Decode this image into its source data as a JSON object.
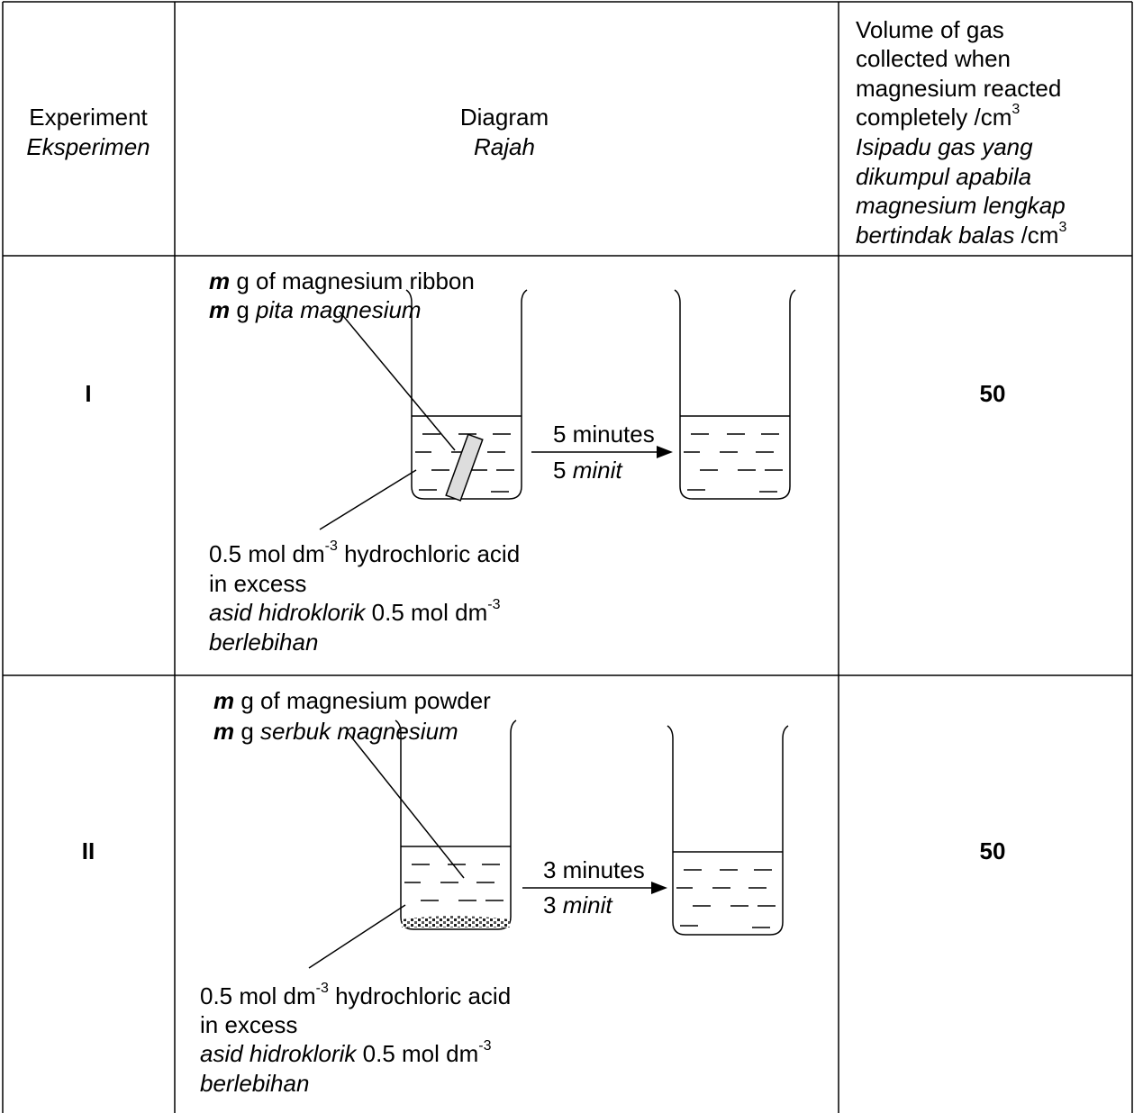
{
  "header": {
    "experiment": {
      "en": "Experiment",
      "ms": "Eksperimen"
    },
    "diagram": {
      "en": "Diagram",
      "ms": "Rajah"
    },
    "volume": {
      "en": [
        "Volume of gas",
        "collected when",
        "magnesium reacted",
        "completely /cm"
      ],
      "en_sup": "3",
      "ms": [
        "Isipadu gas yang",
        "dikumpul apabila",
        "magnesium lengkap",
        "bertindak balas"
      ],
      "ms_unit": " /cm",
      "ms_sup": "3"
    }
  },
  "rows": [
    {
      "experiment": "I",
      "volume": 50,
      "mass_en": [
        "m",
        " g of magnesium ribbon"
      ],
      "mass_ms": [
        "m",
        " g ",
        "pita magnesium"
      ],
      "time_en": "5 minutes",
      "time_ms": [
        "5 ",
        "minit"
      ],
      "acid": {
        "line1": [
          "0.5 mol dm",
          "-3",
          " hydrochloric acid"
        ],
        "line2": "in excess",
        "line3": [
          "asid hidroklorik",
          " 0.5 mol dm",
          "-3"
        ],
        "line4": "berlebihan"
      }
    },
    {
      "experiment": "II",
      "volume": 50,
      "mass_en": [
        "m",
        " g of magnesium powder"
      ],
      "mass_ms": [
        "m",
        " g ",
        "serbuk magnesium"
      ],
      "time_en": "3 minutes",
      "time_ms": [
        "3 ",
        "minit"
      ],
      "acid": {
        "line1": [
          "0.5 mol dm",
          "-3",
          " hydrochloric acid"
        ],
        "line2": "in excess",
        "line3": [
          "asid hidroklorik",
          " 0.5 mol dm",
          "-3"
        ],
        "line4": "berlebihan"
      }
    }
  ]
}
